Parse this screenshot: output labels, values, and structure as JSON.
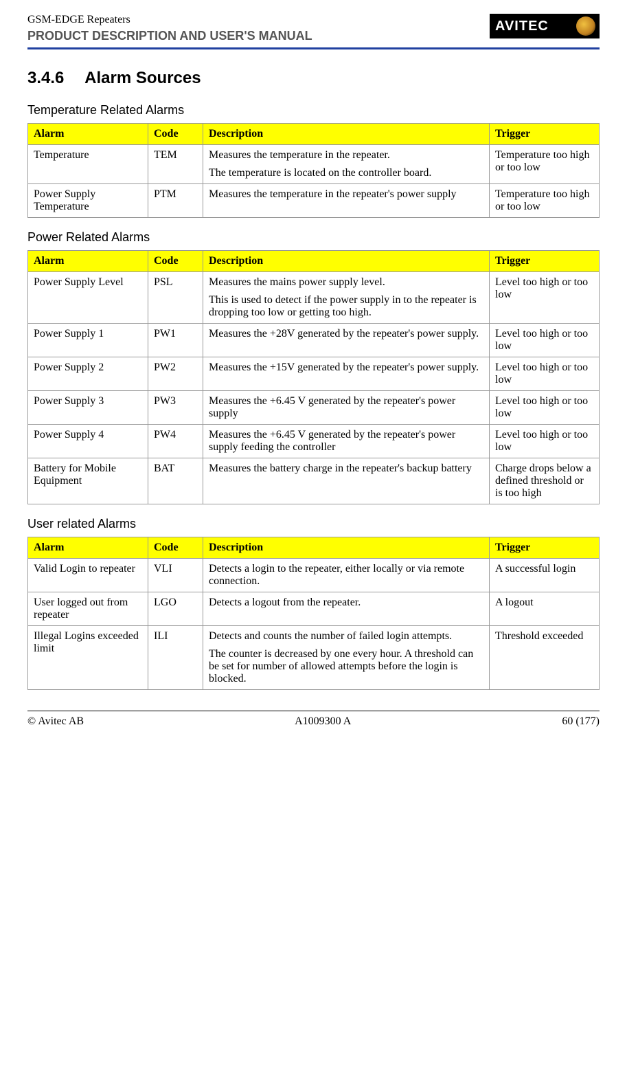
{
  "header": {
    "product": "GSM-EDGE Repeaters",
    "manual_title": "PRODUCT DESCRIPTION AND USER'S MANUAL",
    "logo_text": "AVITEC"
  },
  "section": {
    "number": "3.4.6",
    "title": "Alarm Sources"
  },
  "tables": [
    {
      "heading": "Temperature Related Alarms",
      "columns": [
        "Alarm",
        "Code",
        "Description",
        "Trigger"
      ],
      "rows": [
        {
          "alarm": "Temperature",
          "code": "TEM",
          "desc": [
            "Measures the temperature in the repeater.",
            "The temperature is located on the controller board."
          ],
          "trigger": "Temperature too high or too low"
        },
        {
          "alarm": "Power Supply Temperature",
          "code": "PTM",
          "desc": [
            "Measures the temperature in the repeater's power supply"
          ],
          "trigger": "Temperature too high or too low"
        }
      ]
    },
    {
      "heading": "Power Related Alarms",
      "columns": [
        "Alarm",
        "Code",
        "Description",
        "Trigger"
      ],
      "rows": [
        {
          "alarm": "Power Supply Level",
          "code": "PSL",
          "desc": [
            "Measures the mains power supply level.",
            "This is used to detect if the power supply in to the repeater is dropping too low or getting too high."
          ],
          "trigger": "Level too high or too low"
        },
        {
          "alarm": "Power Supply 1",
          "code": "PW1",
          "desc": [
            "Measures the +28V generated by the repeater's power supply."
          ],
          "trigger": "Level too high or too low"
        },
        {
          "alarm": "Power Supply 2",
          "code": "PW2",
          "desc": [
            "Measures the +15V generated by the repeater's power supply."
          ],
          "trigger": "Level too high or too low"
        },
        {
          "alarm": "Power Supply 3",
          "code": "PW3",
          "desc": [
            "Measures the +6.45 V generated by the repeater's power supply"
          ],
          "trigger": "Level too high or too low"
        },
        {
          "alarm": "Power Supply 4",
          "code": "PW4",
          "desc": [
            "Measures the +6.45 V generated by the repeater's power supply feeding the controller"
          ],
          "trigger": "Level too high or too low"
        },
        {
          "alarm": "Battery for Mobile Equipment",
          "code": "BAT",
          "desc": [
            "Measures the battery charge in the repeater's backup battery"
          ],
          "trigger": "Charge drops below a defined threshold or is too high"
        }
      ]
    },
    {
      "heading": "User related Alarms",
      "columns": [
        "Alarm",
        "Code",
        "Description",
        "Trigger"
      ],
      "rows": [
        {
          "alarm": "Valid Login to repeater",
          "code": "VLI",
          "desc": [
            "Detects a login to the repeater, either locally or via remote connection."
          ],
          "trigger": "A successful login"
        },
        {
          "alarm": "User logged out from repeater",
          "code": "LGO",
          "desc": [
            "Detects a logout from the repeater."
          ],
          "trigger": "A logout"
        },
        {
          "alarm": "Illegal Logins exceeded limit",
          "code": "ILI",
          "desc": [
            "Detects and counts the number of failed login attempts.",
            "The counter is decreased by one every hour. A threshold can be set for number of allowed attempts before the login is blocked."
          ],
          "trigger": "Threshold exceeded"
        }
      ]
    }
  ],
  "footer": {
    "left": "© Avitec AB",
    "center": "A1009300 A",
    "right": "60 (177)"
  }
}
